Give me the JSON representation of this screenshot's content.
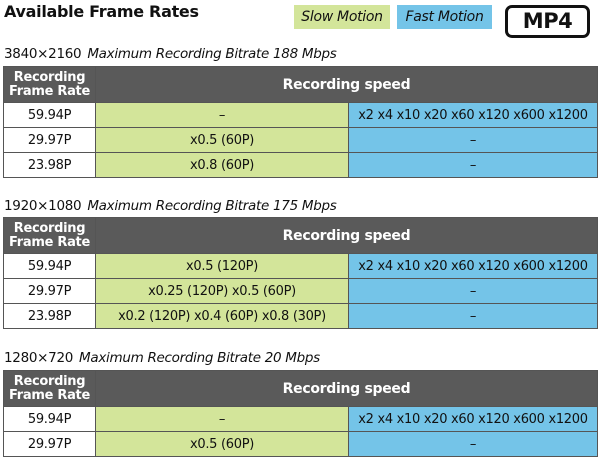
{
  "header": {
    "title": "Available Frame Rates",
    "legend_slow": "Slow Motion",
    "legend_fast": "Fast Motion",
    "logo_text": "MP4"
  },
  "colors": {
    "slow_motion": "#d3e59a",
    "fast_motion": "#74c4e8",
    "header_bg": "#5a5a5a"
  },
  "sections": [
    {
      "resolution": "3840×2160",
      "bitrate": "Maximum Recording Bitrate 188 Mbps",
      "col_frame_rate": "Recording Frame Rate",
      "col_speed": "Recording speed",
      "rows": [
        {
          "frame_rate": "59.94P",
          "slow": "–",
          "fast": "x2 x4 x10 x20 x60 x120 x600 x1200"
        },
        {
          "frame_rate": "29.97P",
          "slow": "x0.5 (60P)",
          "fast": "–"
        },
        {
          "frame_rate": "23.98P",
          "slow": "x0.8 (60P)",
          "fast": "–"
        }
      ]
    },
    {
      "resolution": "1920×1080",
      "bitrate": "Maximum Recording Bitrate 175 Mbps",
      "col_frame_rate": "Recording Frame Rate",
      "col_speed": "Recording speed",
      "rows": [
        {
          "frame_rate": "59.94P",
          "slow": "x0.5 (120P)",
          "fast": "x2 x4 x10 x20 x60 x120 x600 x1200"
        },
        {
          "frame_rate": "29.97P",
          "slow": "x0.25 (120P)  x0.5 (60P)",
          "fast": "–"
        },
        {
          "frame_rate": "23.98P",
          "slow": "x0.2 (120P) x0.4 (60P) x0.8 (30P)",
          "fast": "–"
        }
      ]
    },
    {
      "resolution": "1280×720",
      "bitrate": "Maximum Recording Bitrate 20 Mbps",
      "col_frame_rate": "Recording Frame Rate",
      "col_speed": "Recording speed",
      "rows": [
        {
          "frame_rate": "59.94P",
          "slow": "–",
          "fast": "x2 x4 x10 x20 x60 x120 x600 x1200"
        },
        {
          "frame_rate": "29.97P",
          "slow": "x0.5 (60P)",
          "fast": "–"
        }
      ]
    }
  ]
}
